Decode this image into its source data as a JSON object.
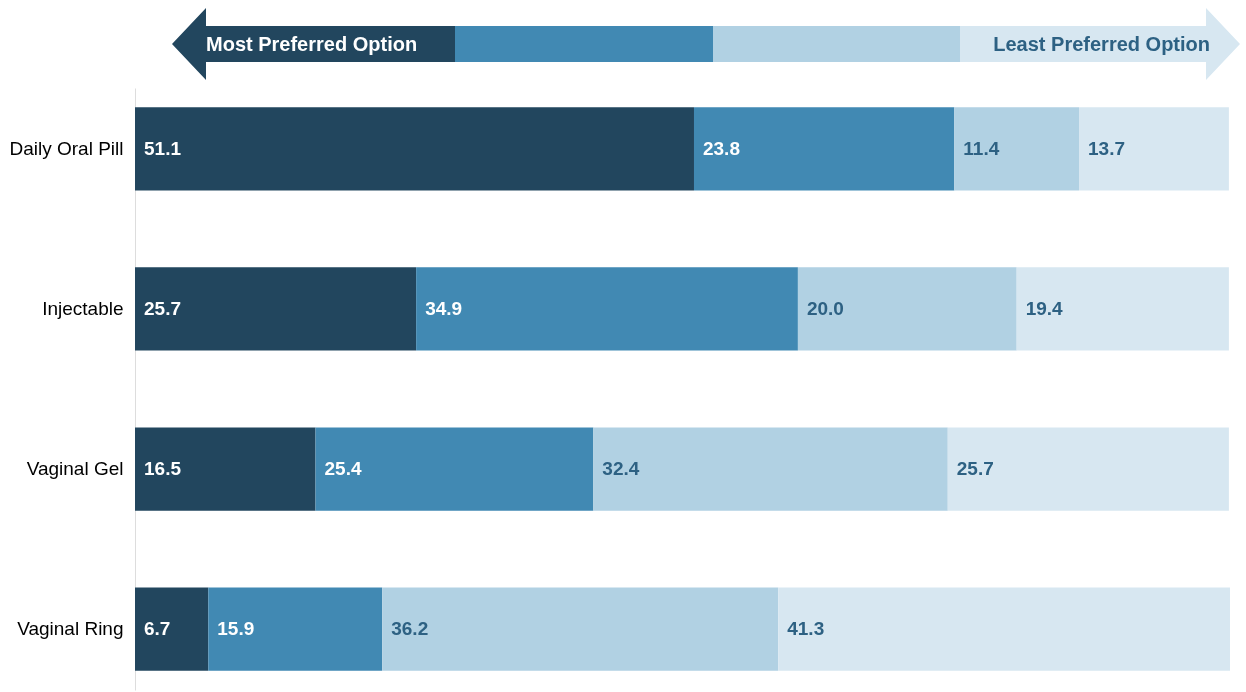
{
  "chart_data": {
    "type": "bar",
    "orientation": "horizontal",
    "stacked": true,
    "legend": false,
    "grid": false,
    "categories": [
      "Daily Oral Pill",
      "Injectable",
      "Vaginal Gel",
      "Vaginal Ring"
    ],
    "xlim": [
      0,
      100.1
    ],
    "tick_labels": "y",
    "annotations": [
      "Most Preferred Option",
      "Least Preferred Option"
    ],
    "series": [
      {
        "color": "#22465e",
        "values": [
          51.1,
          25.7,
          16.5,
          6.7
        ],
        "value_labels": [
          "51.1",
          "25.7",
          "16.5",
          "6.7"
        ]
      },
      {
        "color": "#4189b3",
        "values": [
          23.8,
          34.9,
          25.4,
          15.9
        ],
        "value_labels": [
          "23.8",
          "34.9",
          "25.4",
          "15.9"
        ]
      },
      {
        "color": "#b1d1e3",
        "values": [
          11.4,
          20.0,
          32.4,
          36.2
        ],
        "value_labels": [
          "11.4",
          "20.0",
          "32.4",
          "36.2"
        ]
      },
      {
        "color": "#d7e7f1",
        "values": [
          13.7,
          19.4,
          25.7,
          41.3
        ],
        "value_labels": [
          "13.7",
          "19.4",
          "25.7",
          "41.3"
        ]
      }
    ]
  }
}
